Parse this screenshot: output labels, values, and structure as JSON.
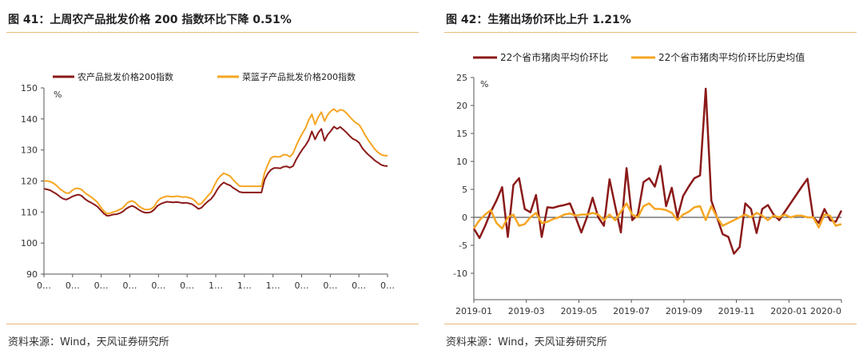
{
  "left": {
    "title": "图 41：上周农产品批发价格 200 指数环比下降 0.51%",
    "source": "资料来源：Wind，天风证券研究所"
  },
  "right": {
    "title": "图 42：生猪出场价环比上升 1.21%",
    "source": "资料来源：Wind，天风证券研究所"
  },
  "chart_data": [
    {
      "type": "line",
      "title": "",
      "unit": "%",
      "ylim": [
        90,
        150
      ],
      "yticks": [
        90,
        100,
        110,
        120,
        130,
        140,
        150
      ],
      "xtick_labels": [
        "0…",
        "0…",
        "0…",
        "0…",
        "0…",
        "0…",
        "1…",
        "1…",
        "1…",
        "0…",
        "0…",
        "0…",
        "0…"
      ],
      "legend_position": "top-left",
      "grid": false,
      "series": [
        {
          "name": "农产品批发价格200指数",
          "color": "#8b1a1a",
          "values": [
            117.5,
            117.3,
            117,
            116.4,
            115.8,
            115,
            114.3,
            114,
            114.4,
            115,
            115.4,
            115.6,
            115.2,
            114.2,
            113.5,
            113,
            112.4,
            111.7,
            110.6,
            109.5,
            108.8,
            108.9,
            109.2,
            109.3,
            109.6,
            110.1,
            111,
            111.6,
            112,
            111.5,
            110.8,
            110.2,
            109.8,
            109.8,
            110,
            110.8,
            112,
            112.6,
            113,
            113.3,
            113.2,
            113.1,
            113.2,
            113.1,
            112.9,
            113,
            112.8,
            112.5,
            111.8,
            111,
            111.4,
            112.5,
            113.4,
            114.2,
            115.5,
            117.3,
            118.6,
            119.5,
            119,
            118.6,
            117.8,
            117.2,
            116.5,
            116.3,
            116.3,
            116.3,
            116.3,
            116.3,
            116.3,
            116.3,
            120.4,
            122.4,
            123.6,
            124.2,
            124.2,
            124.1,
            124.6,
            124.7,
            124.3,
            124.8,
            126.9,
            128.6,
            130.2,
            131.5,
            133.2,
            136,
            133.4,
            135.5,
            136.8,
            133,
            134.9,
            136.1,
            137.5,
            136.8,
            137.4,
            136.5,
            135.6,
            134.5,
            133.6,
            133.1,
            132.3,
            130.6,
            129.4,
            128.4,
            127.5,
            126.6,
            125.9,
            125.2,
            124.9,
            124.8
          ]
        },
        {
          "name": "菜篮子产品批发价格200指数",
          "color": "#f5a623",
          "values": [
            120.1,
            120,
            119.8,
            119.3,
            118.5,
            117.5,
            116.8,
            116.1,
            116.1,
            117,
            117.6,
            117.6,
            117.2,
            116.2,
            115.5,
            114.8,
            114,
            113.1,
            111.6,
            110.3,
            109.5,
            109.6,
            110,
            110.3,
            110.8,
            111.3,
            112.5,
            113.3,
            113.6,
            113,
            112,
            111.3,
            110.8,
            110.8,
            111,
            111.8,
            113.5,
            114.4,
            114.8,
            115.1,
            115,
            114.9,
            115.1,
            115,
            114.8,
            114.9,
            114.6,
            114.3,
            113.5,
            112.4,
            112.8,
            114,
            115.2,
            116.3,
            118.4,
            120.4,
            121.6,
            122.5,
            122.1,
            121.6,
            120.4,
            119.4,
            118.4,
            118.3,
            118.3,
            118.3,
            118.3,
            118.3,
            118.3,
            118.3,
            122.6,
            125.2,
            127.4,
            127.9,
            127.8,
            127.8,
            128.5,
            128.4,
            127.8,
            128.9,
            131.3,
            133.5,
            135.4,
            137.1,
            139.7,
            141.5,
            138.2,
            140.6,
            142.2,
            139.3,
            141.3,
            142.5,
            143.2,
            142.3,
            143,
            142.7,
            141.9,
            140.7,
            139.6,
            138.7,
            138.1,
            136.5,
            134.6,
            133,
            131.6,
            130.2,
            129.2,
            128.5,
            128.2,
            128.2
          ]
        }
      ]
    },
    {
      "type": "line",
      "title": "",
      "unit": "%",
      "ylim": [
        -10,
        25
      ],
      "yticks": [
        -10,
        -5,
        0,
        5,
        10,
        15,
        20,
        25
      ],
      "xtick_labels": [
        "2019-01",
        "2019-03",
        "2019-05",
        "2019-07",
        "2019-09",
        "2019-11",
        "2020-01",
        "2020-0"
      ],
      "legend_position": "top-left",
      "grid": false,
      "series": [
        {
          "name": "22个省市猪肉平均价环比",
          "color": "#8b1a1a",
          "values": [
            -2.0,
            -3.7,
            -1.5,
            1.0,
            3.0,
            5.4,
            -3.5,
            5.8,
            7.0,
            1.5,
            0.9,
            4.0,
            -3.5,
            1.8,
            1.7,
            2.0,
            2.2,
            2.5,
            0.0,
            -2.7,
            0.0,
            3.5,
            0.0,
            -1.5,
            6.8,
            2.0,
            -2.7,
            8.8,
            -0.5,
            0.5,
            6.3,
            7.0,
            5.5,
            9.2,
            2.0,
            5.3,
            0.0,
            3.8,
            5.5,
            7.0,
            7.5,
            23.0,
            3.0,
            0.0,
            -3.0,
            -3.5,
            -6.5,
            -5.3,
            2.5,
            1.5,
            -2.8,
            1.5,
            2.2,
            0.5,
            -0.5,
            1.0,
            2.5,
            4.0,
            5.5,
            6.9,
            0.0,
            -1.0,
            1.5,
            -0.5,
            -0.8,
            1.21
          ]
        },
        {
          "name": "22个省市猪肉平均价环比历史均值",
          "color": "#f5a623",
          "values": [
            -2.0,
            -0.5,
            0.5,
            1.3,
            -1.0,
            -2.0,
            0.0,
            0.5,
            -1.5,
            -1.2,
            0.0,
            0.8,
            -1.0,
            -0.8,
            -0.3,
            0.0,
            0.5,
            0.7,
            0.3,
            0.5,
            0.5,
            0.8,
            0.5,
            -0.5,
            0.5,
            -0.5,
            1.0,
            2.5,
            0.5,
            0.0,
            2.0,
            2.5,
            1.5,
            1.5,
            1.3,
            0.8,
            -0.5,
            0.5,
            1.0,
            1.8,
            2.0,
            -0.5,
            2.0,
            0.0,
            -1.5,
            -1.0,
            -0.5,
            0.0,
            0.5,
            0.0,
            0.8,
            0.3,
            -0.5,
            0.3,
            0.0,
            0.5,
            0.0,
            0.3,
            0.3,
            0.0,
            0.0,
            -1.8,
            0.5,
            0.3,
            -1.5,
            -1.2
          ]
        }
      ]
    }
  ]
}
